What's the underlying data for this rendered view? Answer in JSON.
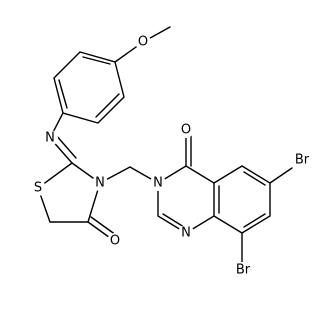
{
  "atoms": [
    "O",
    "N",
    "S",
    "N",
    "O",
    "N",
    "O",
    "Br",
    "Br",
    "N"
  ]
}
